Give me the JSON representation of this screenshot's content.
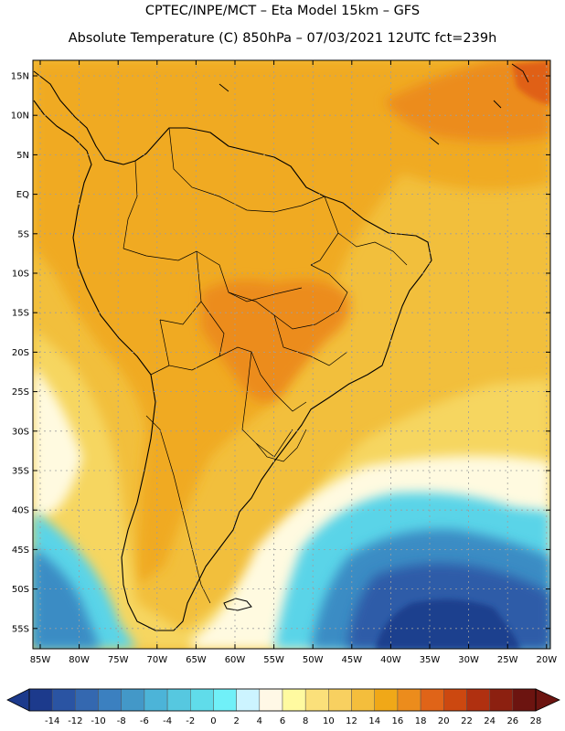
{
  "title": "CPTEC/INPE/MCT –  Eta Model 15km – GFS",
  "subtitle": "Absolute Temperature (C) 850hPa – 07/03/2021 12UTC fct=239h",
  "lat_labels": [
    "15N",
    "10N",
    "5N",
    "EQ",
    "5S",
    "10S",
    "15S",
    "20S",
    "25S",
    "30S",
    "35S",
    "40S",
    "45S",
    "50S",
    "55S"
  ],
  "lon_labels": [
    "85W",
    "80W",
    "75W",
    "70W",
    "65W",
    "60W",
    "55W",
    "50W",
    "45W",
    "40W",
    "35W",
    "30W",
    "25W",
    "20W"
  ],
  "colorbar": {
    "ticks": [
      "-14",
      "-12",
      "-10",
      "-8",
      "-6",
      "-4",
      "-2",
      "0",
      "2",
      "4",
      "6",
      "8",
      "10",
      "12",
      "14",
      "16",
      "18",
      "20",
      "22",
      "24",
      "26",
      "28"
    ],
    "colors": [
      "#1c3a8c",
      "#2a54a3",
      "#3468b0",
      "#3b80c0",
      "#4398c8",
      "#4cb4d8",
      "#56c8e0",
      "#60dcea",
      "#70f0f8",
      "#ccf4ff",
      "#fff8e6",
      "#fffaa0",
      "#fbe07a",
      "#f8d060",
      "#f4be3c",
      "#f0a818",
      "#ec8c1c",
      "#e06418",
      "#cc4810",
      "#b03010",
      "#8c2010",
      "#6c1410"
    ]
  },
  "map": {
    "region": "South America",
    "variable": "Absolute Temperature (C) 850hPa",
    "colors": {
      "warm_base": "#f2bf3c",
      "warm_mid": "#f0aa22",
      "hot": "#ec8c1e",
      "hottest": "#e06018",
      "cool_yellow": "#f6d660",
      "pale": "#fffae0",
      "cyan": "#5ad4e8",
      "blue_mid": "#3a8cc4",
      "blue_dark": "#2e5ca8",
      "navy": "#1f3f8e"
    }
  }
}
